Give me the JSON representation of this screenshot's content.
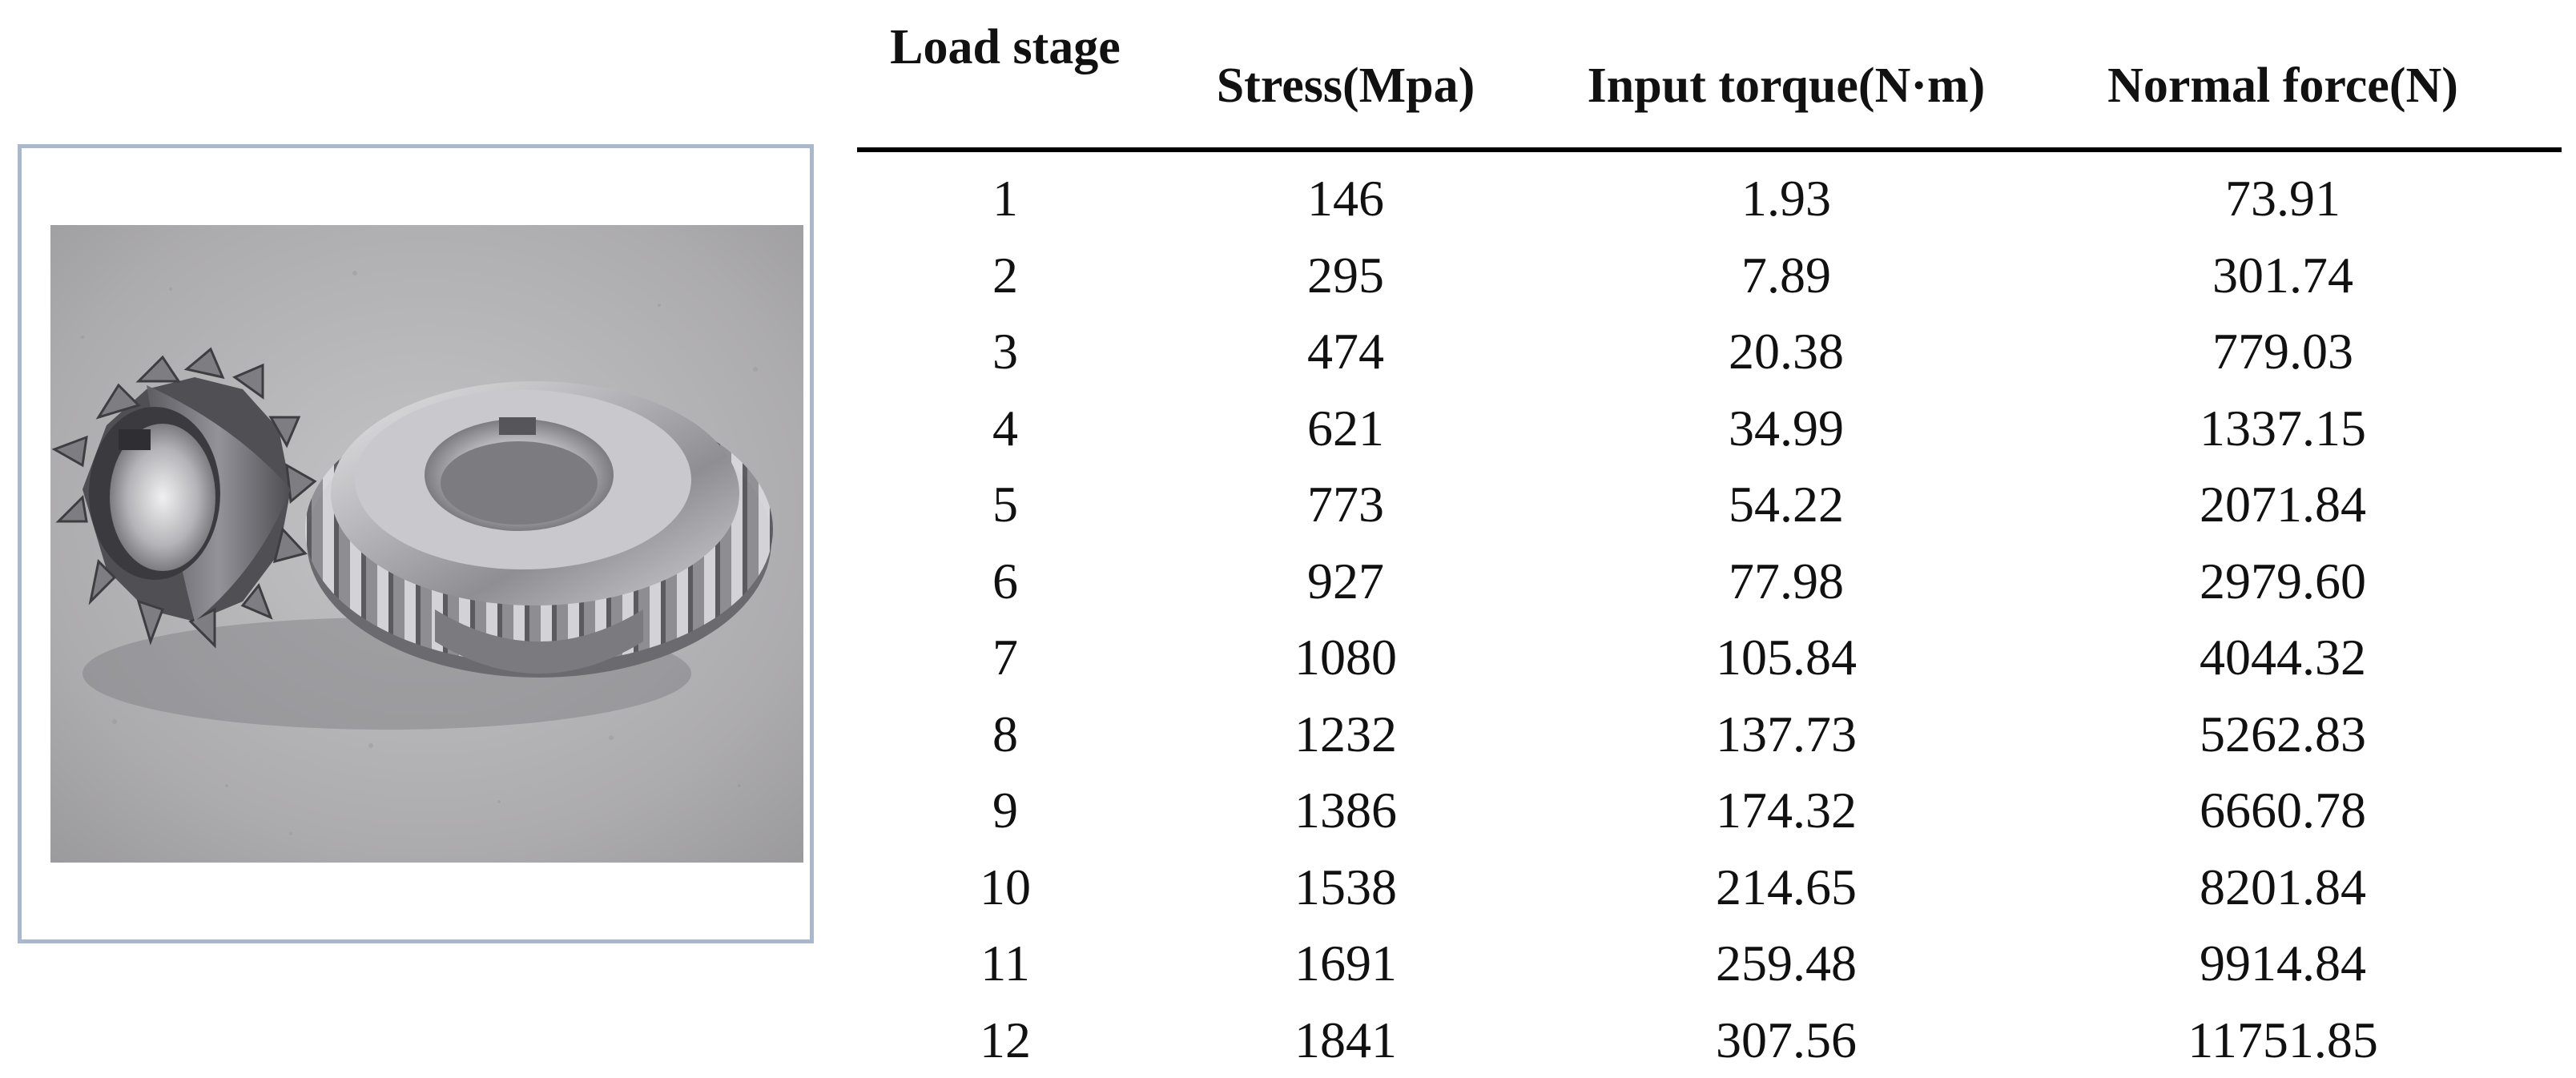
{
  "photo": {
    "icon": "spiral-bevel-gear-pair-photo"
  },
  "table": {
    "headers": {
      "load_stage": "Load stage",
      "stress": "Stress(Mpa)",
      "input_torque": "Input torque(N·m)",
      "normal_force": "Normal force(N)"
    },
    "rows": [
      {
        "load_stage": "1",
        "stress": "146",
        "input_torque": "1.93",
        "normal_force": "73.91"
      },
      {
        "load_stage": "2",
        "stress": "295",
        "input_torque": "7.89",
        "normal_force": "301.74"
      },
      {
        "load_stage": "3",
        "stress": "474",
        "input_torque": "20.38",
        "normal_force": "779.03"
      },
      {
        "load_stage": "4",
        "stress": "621",
        "input_torque": "34.99",
        "normal_force": "1337.15"
      },
      {
        "load_stage": "5",
        "stress": "773",
        "input_torque": "54.22",
        "normal_force": "2071.84"
      },
      {
        "load_stage": "6",
        "stress": "927",
        "input_torque": "77.98",
        "normal_force": "2979.60"
      },
      {
        "load_stage": "7",
        "stress": "1080",
        "input_torque": "105.84",
        "normal_force": "4044.32"
      },
      {
        "load_stage": "8",
        "stress": "1232",
        "input_torque": "137.73",
        "normal_force": "5262.83"
      },
      {
        "load_stage": "9",
        "stress": "1386",
        "input_torque": "174.32",
        "normal_force": "6660.78"
      },
      {
        "load_stage": "10",
        "stress": "1538",
        "input_torque": "214.65",
        "normal_force": "8201.84"
      },
      {
        "load_stage": "11",
        "stress": "1691",
        "input_torque": "259.48",
        "normal_force": "9914.84"
      },
      {
        "load_stage": "12",
        "stress": "1841",
        "input_torque": "307.56",
        "normal_force": "11751.85"
      }
    ]
  }
}
